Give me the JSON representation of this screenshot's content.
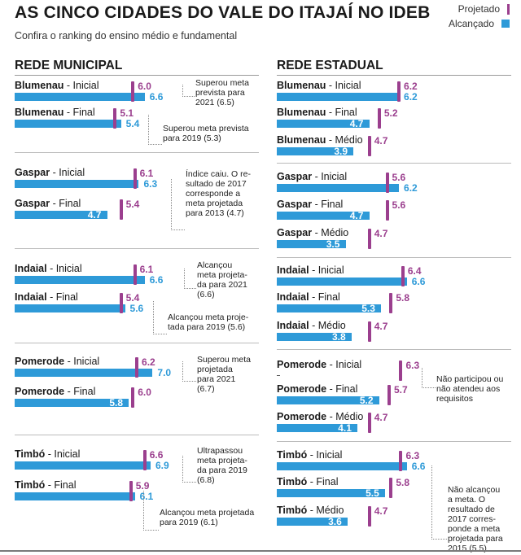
{
  "header": {
    "title": "AS CINCO CIDADES DO VALE DO ITAJAÍ NO IDEB",
    "subtitle": "Confira o ranking do ensino médio e fundamental"
  },
  "legend": {
    "projected": "Projetado",
    "achieved": "Alcançado"
  },
  "colors": {
    "projected": "#9b3f8e",
    "achieved": "#2e9ad8"
  },
  "chart_data": [
    {
      "type": "bar",
      "title": "REDE MUNICIPAL",
      "series": [
        {
          "name": "Projetado"
        },
        {
          "name": "Alcançado"
        }
      ],
      "rows": [
        {
          "city": "Blumenau",
          "level": " - Inicial",
          "projected": 6.0,
          "achieved": 6.6
        },
        {
          "city": "Blumenau",
          "level": " - Final",
          "projected": 5.1,
          "achieved": 5.4
        },
        {
          "city": "Gaspar",
          "level": " - Inicial",
          "projected": 6.1,
          "achieved": 6.3
        },
        {
          "city": "Gaspar",
          "level": " - Final",
          "projected": 5.4,
          "achieved": 4.7
        },
        {
          "city": "Indaial",
          "level": " - Inicial",
          "projected": 6.1,
          "achieved": 6.6
        },
        {
          "city": "Indaial",
          "level": " - Final",
          "projected": 5.4,
          "achieved": 5.6
        },
        {
          "city": "Pomerode",
          "level": " - Inicial",
          "projected": 6.2,
          "achieved": 7.0
        },
        {
          "city": "Pomerode",
          "level": " - Final",
          "projected": 6.0,
          "achieved": 5.8
        },
        {
          "city": "Timbó",
          "level": " - Inicial",
          "projected": 6.6,
          "achieved": 6.9
        },
        {
          "city": "Timbó",
          "level": " - Final",
          "projected": 5.9,
          "achieved": 6.1
        }
      ],
      "annotations": [
        {
          "lines": [
            "Superou meta",
            "prevista para",
            "2021 (6.5)"
          ]
        },
        {
          "lines": [
            "Superou meta prevista",
            "para 2019 (5.3)"
          ]
        },
        {
          "lines": [
            "Índice caiu. O re-",
            "sultado de 2017",
            "corresponde a",
            "meta projetada",
            "para 2013 (4.7)"
          ]
        },
        {
          "lines": [
            "Alcançou",
            "meta projeta-",
            "da para 2021",
            "(6.6)"
          ]
        },
        {
          "lines": [
            "Alcançou meta proje-",
            "tada para 2019 (5.6)"
          ]
        },
        {
          "lines": [
            "Superou meta",
            "projetada",
            "para 2021",
            "(6.7)"
          ]
        },
        {
          "lines": [
            "Ultrapassou",
            "meta projeta-",
            "da para 2019",
            "(6.8)"
          ]
        },
        {
          "lines": [
            "Alcançou meta projetada",
            "para 2019 (6.1)"
          ]
        }
      ]
    },
    {
      "type": "bar",
      "title": "REDE ESTADUAL",
      "series": [
        {
          "name": "Projetado"
        },
        {
          "name": "Alcançado"
        }
      ],
      "rows": [
        {
          "city": "Blumenau",
          "level": " - Inicial",
          "projected": 6.2,
          "achieved": 6.2
        },
        {
          "city": "Blumenau",
          "level": " - Final",
          "projected": 5.2,
          "achieved": 4.7
        },
        {
          "city": "Blumenau",
          "level": " - Médio",
          "projected": 4.7,
          "achieved": 3.9
        },
        {
          "city": "Gaspar",
          "level": " - Inicial",
          "projected": 5.6,
          "achieved": 6.2
        },
        {
          "city": "Gaspar",
          "level": " - Final",
          "projected": 5.6,
          "achieved": 4.7
        },
        {
          "city": "Gaspar",
          "level": " - Médio",
          "projected": 4.7,
          "achieved": 3.5
        },
        {
          "city": "Indaial",
          "level": " - Inicial",
          "projected": 6.4,
          "achieved": 6.6
        },
        {
          "city": "Indaial",
          "level": " - Final",
          "projected": 5.8,
          "achieved": 5.3
        },
        {
          "city": "Indaial",
          "level": " - Médio",
          "projected": 4.7,
          "achieved": 3.8
        },
        {
          "city": "Pomerode",
          "level": " - Inicial",
          "projected": 6.3,
          "achieved": null
        },
        {
          "city": "Pomerode",
          "level": " - Final",
          "projected": 5.7,
          "achieved": 5.2
        },
        {
          "city": "Pomerode",
          "level": " - Médio",
          "projected": 4.7,
          "achieved": 4.1
        },
        {
          "city": "Timbó",
          "level": " - Inicial",
          "projected": 6.3,
          "achieved": 6.6
        },
        {
          "city": "Timbó",
          "level": " - Final",
          "projected": 5.8,
          "achieved": 5.5
        },
        {
          "city": "Timbó",
          "level": " - Médio",
          "projected": 4.7,
          "achieved": 3.6
        }
      ],
      "annotations": [
        {
          "lines": [
            "Não participou ou",
            "não atendeu aos",
            "requisitos"
          ]
        },
        {
          "lines": [
            "Não alcançou",
            "a meta. O",
            "resultado de",
            "2017 corres-",
            "ponde a meta",
            "projetada para",
            "2015 (5.5)"
          ]
        }
      ]
    }
  ]
}
